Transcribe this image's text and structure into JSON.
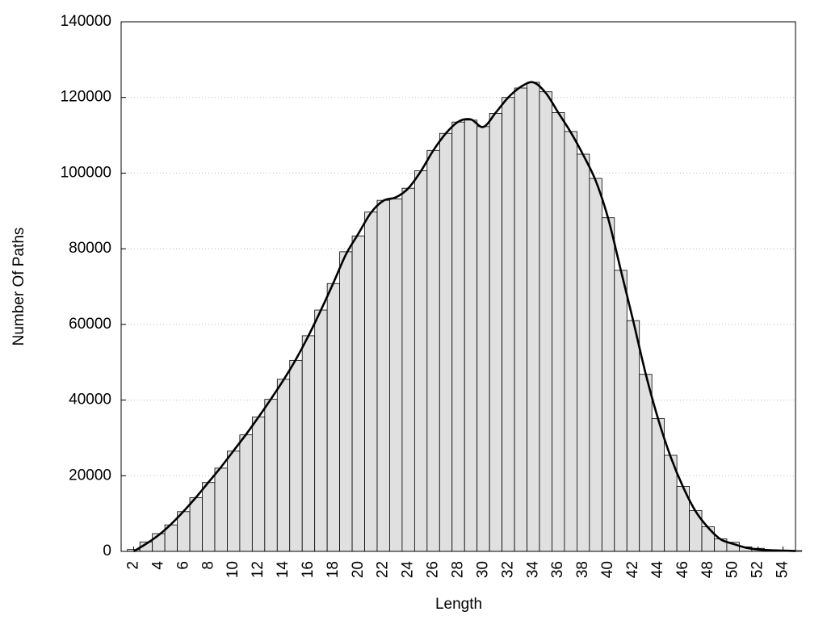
{
  "chart_data": {
    "type": "bar",
    "x_label": "Length",
    "y_label": "Number Of Paths",
    "x": [
      2,
      3,
      4,
      5,
      6,
      7,
      8,
      9,
      10,
      11,
      12,
      13,
      14,
      15,
      16,
      17,
      18,
      19,
      20,
      21,
      22,
      23,
      24,
      25,
      26,
      27,
      28,
      29,
      30,
      31,
      32,
      33,
      34,
      35,
      36,
      37,
      38,
      39,
      40,
      41,
      42,
      43,
      44,
      45,
      46,
      47,
      48,
      49,
      50,
      51,
      52,
      53,
      54,
      55
    ],
    "series": [
      {
        "type": "bar",
        "color": "#e0e0e0",
        "values": [
          500,
          2500,
          4700,
          7000,
          10500,
          14200,
          18200,
          22000,
          26500,
          30800,
          35500,
          40200,
          45500,
          50500,
          57000,
          63800,
          70800,
          79200,
          83400,
          89700,
          92800,
          93200,
          96000,
          100600,
          106000,
          110500,
          113500,
          114000,
          112300,
          115800,
          120000,
          122500,
          124000,
          121500,
          116000,
          111000,
          105000,
          98600,
          88200,
          74300,
          61000,
          46800,
          35100,
          25400,
          17200,
          10800,
          6500,
          3300,
          2400,
          1200,
          800,
          400,
          300,
          200
        ]
      },
      {
        "type": "line",
        "color": "#000000",
        "values": [
          0,
          2000,
          4300,
          7200,
          10600,
          14300,
          18300,
          22300,
          26600,
          30900,
          35500,
          40300,
          45300,
          50800,
          57000,
          63800,
          71000,
          78500,
          84000,
          89500,
          92700,
          93600,
          96000,
          100500,
          106000,
          110500,
          113600,
          114200,
          112200,
          116000,
          120000,
          122800,
          124000,
          121200,
          116000,
          110800,
          104800,
          98000,
          88000,
          74500,
          61000,
          47000,
          35000,
          25000,
          17000,
          10600,
          6300,
          3200,
          2000,
          1000,
          500,
          300,
          200,
          100
        ]
      }
    ],
    "xlim": [
      1,
      55
    ],
    "ylim": [
      0,
      140000
    ],
    "xticks": [
      2,
      4,
      6,
      8,
      10,
      12,
      14,
      16,
      18,
      20,
      22,
      24,
      26,
      28,
      30,
      32,
      34,
      36,
      38,
      40,
      42,
      44,
      46,
      48,
      50,
      52,
      54
    ],
    "yticks": [
      0,
      20000,
      40000,
      60000,
      80000,
      100000,
      120000,
      140000
    ],
    "grid": true
  }
}
